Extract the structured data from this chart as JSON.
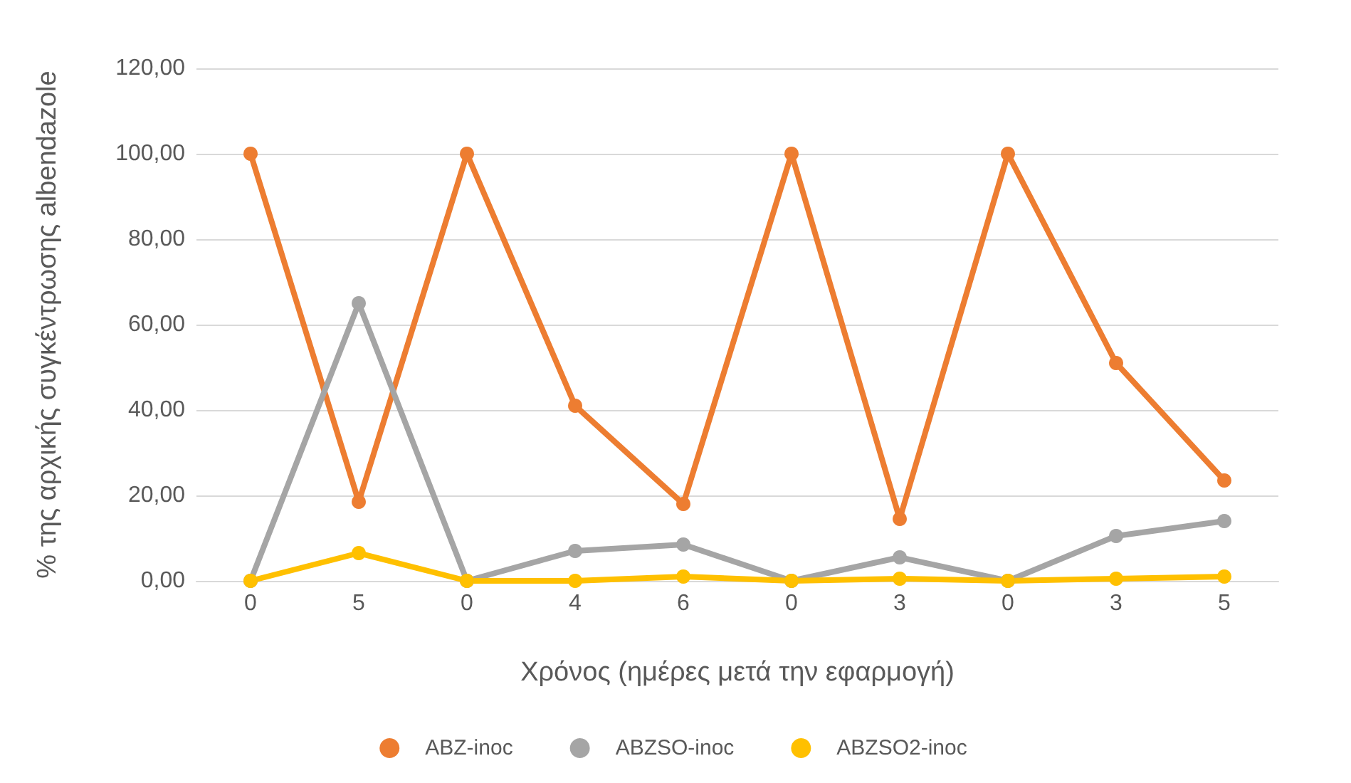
{
  "chart_data": {
    "type": "line",
    "xlabel": "Χρόνος (ημέρες μετά την εφαρμογή)",
    "ylabel": "% της αρχικής συγκέντρωσης albendazole",
    "categories": [
      "0",
      "5",
      "0",
      "4",
      "6",
      "0",
      "3",
      "0",
      "3",
      "5"
    ],
    "series": [
      {
        "name": "ABZ-inoc",
        "color": "#ed7d31",
        "values": [
          100,
          18.5,
          100,
          41,
          18,
          100,
          14.5,
          100,
          51,
          23.5
        ]
      },
      {
        "name": "ABZSO-inoc",
        "color": "#a5a5a5",
        "values": [
          0,
          65,
          0,
          7,
          8.5,
          0,
          5.5,
          0,
          10.5,
          14
        ]
      },
      {
        "name": "ABZSO2-inoc",
        "color": "#ffc000",
        "values": [
          0,
          6.5,
          0,
          0,
          1,
          0,
          0.5,
          0,
          0.5,
          1
        ]
      }
    ],
    "ylim": [
      0,
      120
    ],
    "yticks": [
      {
        "value": 0,
        "label": "0,00"
      },
      {
        "value": 20,
        "label": "20,00"
      },
      {
        "value": 40,
        "label": "40,00"
      },
      {
        "value": 60,
        "label": "60,00"
      },
      {
        "value": 80,
        "label": "80,00"
      },
      {
        "value": 100,
        "label": "100,00"
      },
      {
        "value": 120,
        "label": "120,00"
      }
    ],
    "grid": "y",
    "legend": "bottom",
    "marker": "circle",
    "line_style": "solid"
  }
}
